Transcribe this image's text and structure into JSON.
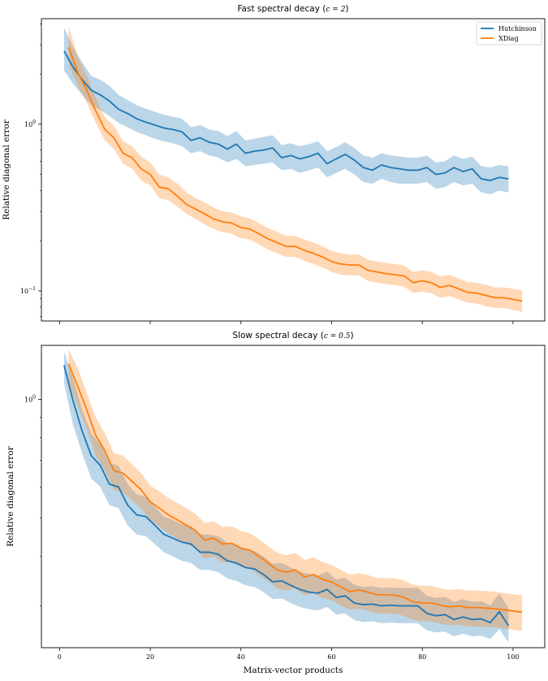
{
  "chart_data": [
    {
      "type": "line",
      "title": "Fast spectral decay (c = 2)",
      "title_parts": {
        "prefix": "Fast spectral decay (",
        "math": "c = 2",
        "suffix": ")"
      },
      "xlabel": "",
      "ylabel": "Relative diagonal error",
      "yscale": "log",
      "xlim": [
        -4,
        107
      ],
      "ylim": [
        0.066,
        4.3
      ],
      "xticks": [
        0,
        20,
        40,
        60,
        80,
        100
      ],
      "xtick_labels_visible": false,
      "yticks": [
        {
          "value": 1,
          "label": "10^0",
          "base": "10",
          "exp": "0"
        },
        {
          "value": 0.1,
          "label": "10^-1",
          "base": "10",
          "exp": "−1"
        }
      ],
      "legend": {
        "position": "top-right",
        "entries": [
          "Hutchinson",
          "XDiag"
        ]
      },
      "grid": false,
      "series": [
        {
          "name": "Hutchinson",
          "color": "#1f77b4",
          "x": [
            1,
            3,
            5,
            7,
            9,
            11,
            13,
            15,
            17,
            19,
            21,
            23,
            25,
            27,
            29,
            31,
            33,
            35,
            37,
            39,
            41,
            43,
            45,
            47,
            49,
            51,
            53,
            55,
            57,
            59,
            61,
            63,
            65,
            67,
            69,
            71,
            73,
            75,
            77,
            79,
            81,
            83,
            85,
            87,
            89,
            91,
            93,
            95,
            97,
            99
          ],
          "y": [
            2.75,
            2.2,
            1.85,
            1.6,
            1.5,
            1.38,
            1.23,
            1.16,
            1.08,
            1.03,
            0.99,
            0.95,
            0.93,
            0.9,
            0.8,
            0.83,
            0.78,
            0.76,
            0.71,
            0.76,
            0.67,
            0.69,
            0.7,
            0.72,
            0.63,
            0.65,
            0.62,
            0.64,
            0.67,
            0.58,
            0.62,
            0.66,
            0.61,
            0.55,
            0.53,
            0.57,
            0.55,
            0.54,
            0.53,
            0.53,
            0.55,
            0.5,
            0.51,
            0.55,
            0.52,
            0.54,
            0.47,
            0.46,
            0.48,
            0.47
          ],
          "lower": [
            2.1,
            1.75,
            1.5,
            1.3,
            1.22,
            1.12,
            1.02,
            0.96,
            0.9,
            0.86,
            0.82,
            0.79,
            0.77,
            0.74,
            0.67,
            0.69,
            0.65,
            0.63,
            0.59,
            0.62,
            0.56,
            0.57,
            0.58,
            0.59,
            0.53,
            0.54,
            0.51,
            0.53,
            0.55,
            0.48,
            0.51,
            0.54,
            0.5,
            0.45,
            0.44,
            0.47,
            0.45,
            0.44,
            0.44,
            0.44,
            0.45,
            0.41,
            0.42,
            0.45,
            0.43,
            0.44,
            0.39,
            0.38,
            0.4,
            0.39
          ],
          "upper": [
            3.8,
            2.9,
            2.35,
            1.95,
            1.85,
            1.7,
            1.5,
            1.4,
            1.3,
            1.24,
            1.19,
            1.14,
            1.11,
            1.08,
            0.96,
            0.99,
            0.93,
            0.91,
            0.85,
            0.91,
            0.8,
            0.82,
            0.84,
            0.86,
            0.75,
            0.77,
            0.74,
            0.76,
            0.79,
            0.69,
            0.73,
            0.78,
            0.72,
            0.65,
            0.63,
            0.67,
            0.65,
            0.64,
            0.63,
            0.63,
            0.65,
            0.59,
            0.6,
            0.65,
            0.62,
            0.64,
            0.56,
            0.55,
            0.57,
            0.56
          ]
        },
        {
          "name": "XDiag",
          "color": "#ff7f0e",
          "x": [
            2,
            4,
            6,
            8,
            10,
            12,
            14,
            16,
            18,
            20,
            22,
            24,
            26,
            28,
            30,
            32,
            34,
            36,
            38,
            40,
            42,
            44,
            46,
            48,
            50,
            52,
            54,
            56,
            58,
            60,
            62,
            64,
            66,
            68,
            70,
            72,
            74,
            76,
            78,
            80,
            82,
            84,
            86,
            88,
            90,
            92,
            94,
            96,
            98,
            100,
            102
          ],
          "y": [
            2.9,
            2.05,
            1.6,
            1.2,
            0.93,
            0.83,
            0.67,
            0.63,
            0.54,
            0.5,
            0.42,
            0.41,
            0.37,
            0.33,
            0.31,
            0.29,
            0.27,
            0.26,
            0.255,
            0.24,
            0.235,
            0.22,
            0.205,
            0.195,
            0.185,
            0.185,
            0.175,
            0.168,
            0.16,
            0.15,
            0.145,
            0.143,
            0.143,
            0.133,
            0.13,
            0.127,
            0.125,
            0.123,
            0.112,
            0.115,
            0.112,
            0.105,
            0.108,
            0.103,
            0.098,
            0.097,
            0.094,
            0.091,
            0.091,
            0.089,
            0.087
          ],
          "lower": [
            2.3,
            1.7,
            1.35,
            1.02,
            0.8,
            0.71,
            0.58,
            0.54,
            0.46,
            0.43,
            0.36,
            0.35,
            0.32,
            0.29,
            0.27,
            0.25,
            0.235,
            0.225,
            0.22,
            0.207,
            0.203,
            0.19,
            0.177,
            0.168,
            0.16,
            0.16,
            0.151,
            0.145,
            0.138,
            0.13,
            0.125,
            0.124,
            0.124,
            0.115,
            0.112,
            0.11,
            0.108,
            0.106,
            0.097,
            0.099,
            0.097,
            0.091,
            0.093,
            0.089,
            0.085,
            0.084,
            0.081,
            0.079,
            0.079,
            0.077,
            0.075
          ],
          "upper": [
            3.9,
            2.55,
            1.95,
            1.45,
            1.1,
            0.98,
            0.79,
            0.74,
            0.64,
            0.59,
            0.5,
            0.48,
            0.44,
            0.39,
            0.36,
            0.34,
            0.315,
            0.3,
            0.295,
            0.28,
            0.272,
            0.255,
            0.238,
            0.226,
            0.214,
            0.214,
            0.203,
            0.195,
            0.185,
            0.174,
            0.168,
            0.165,
            0.165,
            0.154,
            0.15,
            0.147,
            0.145,
            0.142,
            0.13,
            0.133,
            0.13,
            0.122,
            0.125,
            0.119,
            0.113,
            0.112,
            0.109,
            0.105,
            0.105,
            0.103,
            0.101
          ]
        }
      ]
    },
    {
      "type": "line",
      "title": "Slow spectral decay (c = 0.5)",
      "title_parts": {
        "prefix": "Slow spectral decay (",
        "math": "c = 0.5",
        "suffix": ")"
      },
      "xlabel": "Matrix-vector products",
      "ylabel": "Relative diagonal error",
      "yscale": "log",
      "xlim": [
        -4,
        107
      ],
      "ylim": [
        0.235,
        1.37
      ],
      "xticks": [
        0,
        20,
        40,
        60,
        80,
        100
      ],
      "xtick_labels_visible": true,
      "yticks": [
        {
          "value": 1,
          "label": "10^0",
          "base": "10",
          "exp": "0"
        }
      ],
      "grid": false,
      "series": [
        {
          "name": "Hutchinson",
          "color": "#1f77b4",
          "x": [
            1,
            3,
            5,
            7,
            9,
            11,
            13,
            15,
            17,
            19,
            21,
            23,
            25,
            27,
            29,
            31,
            33,
            35,
            37,
            39,
            41,
            43,
            45,
            47,
            49,
            51,
            53,
            55,
            57,
            59,
            61,
            63,
            65,
            67,
            69,
            71,
            73,
            75,
            77,
            79,
            81,
            83,
            85,
            87,
            89,
            91,
            93,
            95,
            97,
            99
          ],
          "y": [
            1.22,
            0.99,
            0.83,
            0.72,
            0.68,
            0.61,
            0.6,
            0.54,
            0.51,
            0.505,
            0.48,
            0.455,
            0.445,
            0.435,
            0.43,
            0.41,
            0.41,
            0.405,
            0.39,
            0.385,
            0.375,
            0.372,
            0.36,
            0.345,
            0.347,
            0.338,
            0.33,
            0.325,
            0.323,
            0.33,
            0.315,
            0.318,
            0.305,
            0.302,
            0.303,
            0.3,
            0.301,
            0.3,
            0.3,
            0.3,
            0.287,
            0.283,
            0.285,
            0.277,
            0.281,
            0.277,
            0.278,
            0.272,
            0.29,
            0.267
          ],
          "lower": [
            1.1,
            0.86,
            0.73,
            0.63,
            0.6,
            0.54,
            0.53,
            0.48,
            0.455,
            0.45,
            0.43,
            0.41,
            0.4,
            0.39,
            0.385,
            0.37,
            0.37,
            0.365,
            0.352,
            0.347,
            0.338,
            0.335,
            0.325,
            0.312,
            0.313,
            0.305,
            0.298,
            0.294,
            0.292,
            0.298,
            0.285,
            0.287,
            0.276,
            0.273,
            0.274,
            0.271,
            0.272,
            0.271,
            0.271,
            0.271,
            0.26,
            0.257,
            0.258,
            0.251,
            0.255,
            0.251,
            0.252,
            0.247,
            0.262,
            0.242
          ],
          "upper": [
            1.32,
            1.13,
            0.94,
            0.82,
            0.77,
            0.69,
            0.68,
            0.61,
            0.575,
            0.565,
            0.535,
            0.505,
            0.495,
            0.483,
            0.478,
            0.455,
            0.455,
            0.45,
            0.433,
            0.427,
            0.416,
            0.413,
            0.4,
            0.383,
            0.385,
            0.375,
            0.366,
            0.361,
            0.358,
            0.366,
            0.35,
            0.353,
            0.339,
            0.335,
            0.336,
            0.333,
            0.334,
            0.333,
            0.333,
            0.333,
            0.318,
            0.314,
            0.316,
            0.307,
            0.312,
            0.307,
            0.308,
            0.301,
            0.322,
            0.296
          ]
        },
        {
          "name": "XDiag",
          "color": "#ff7f0e",
          "x": [
            2,
            4,
            6,
            8,
            10,
            12,
            14,
            16,
            18,
            20,
            22,
            24,
            26,
            28,
            30,
            32,
            34,
            36,
            38,
            40,
            42,
            44,
            46,
            48,
            50,
            52,
            54,
            56,
            58,
            60,
            62,
            64,
            66,
            68,
            70,
            72,
            74,
            76,
            78,
            80,
            82,
            84,
            86,
            88,
            90,
            92,
            94,
            96,
            98,
            100,
            102
          ],
          "y": [
            1.23,
            1.08,
            0.94,
            0.81,
            0.74,
            0.66,
            0.65,
            0.62,
            0.59,
            0.55,
            0.53,
            0.51,
            0.495,
            0.48,
            0.465,
            0.44,
            0.445,
            0.43,
            0.432,
            0.42,
            0.415,
            0.4,
            0.385,
            0.37,
            0.365,
            0.37,
            0.355,
            0.36,
            0.35,
            0.345,
            0.335,
            0.326,
            0.329,
            0.325,
            0.32,
            0.32,
            0.319,
            0.315,
            0.307,
            0.305,
            0.305,
            0.301,
            0.298,
            0.3,
            0.297,
            0.297,
            0.296,
            0.295,
            0.293,
            0.291,
            0.289
          ],
          "lower": [
            1.1,
            0.96,
            0.84,
            0.72,
            0.66,
            0.59,
            0.58,
            0.555,
            0.53,
            0.495,
            0.476,
            0.458,
            0.444,
            0.431,
            0.418,
            0.395,
            0.4,
            0.386,
            0.388,
            0.377,
            0.373,
            0.359,
            0.346,
            0.332,
            0.328,
            0.332,
            0.319,
            0.323,
            0.314,
            0.31,
            0.301,
            0.293,
            0.295,
            0.292,
            0.287,
            0.287,
            0.286,
            0.283,
            0.276,
            0.274,
            0.274,
            0.27,
            0.268,
            0.269,
            0.266,
            0.266,
            0.265,
            0.265,
            0.263,
            0.261,
            0.259
          ],
          "upper": [
            1.34,
            1.2,
            1.04,
            0.9,
            0.82,
            0.73,
            0.72,
            0.685,
            0.65,
            0.605,
            0.585,
            0.563,
            0.546,
            0.53,
            0.513,
            0.486,
            0.491,
            0.475,
            0.477,
            0.464,
            0.458,
            0.442,
            0.425,
            0.409,
            0.403,
            0.409,
            0.392,
            0.398,
            0.387,
            0.381,
            0.37,
            0.36,
            0.363,
            0.359,
            0.353,
            0.353,
            0.352,
            0.348,
            0.339,
            0.337,
            0.337,
            0.332,
            0.329,
            0.331,
            0.328,
            0.328,
            0.327,
            0.326,
            0.323,
            0.321,
            0.319
          ]
        }
      ]
    }
  ]
}
